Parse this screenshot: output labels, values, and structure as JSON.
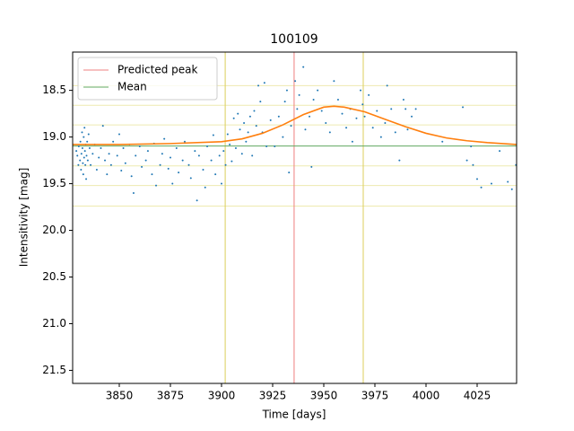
{
  "chart_data": {
    "type": "scatter",
    "title": "100109",
    "x_label": "Time [days]",
    "y_label": "Intensitivity [mag]",
    "xlim": [
      3827.2,
      4044.3
    ],
    "ylim": [
      21.64,
      18.09
    ],
    "xticks": [
      3850,
      3875,
      3900,
      3925,
      3950,
      3975,
      4000,
      4025
    ],
    "yticks": [
      {
        "value": 18.5,
        "label": "18.5"
      },
      {
        "value": 19,
        "label": "19.0"
      },
      {
        "value": 19.5,
        "label": "19.5"
      },
      {
        "value": 20,
        "label": "20.0"
      },
      {
        "value": 20.5,
        "label": "20.5"
      },
      {
        "value": 21,
        "label": "21.0"
      },
      {
        "value": 21.5,
        "label": "21.5"
      }
    ],
    "legend": "upper left",
    "color": "#1f77b4",
    "x": [
      3829.0,
      3829.5,
      3830.0,
      3830.2,
      3830.8,
      3831.0,
      3831.3,
      3831.5,
      3831.8,
      3832.0,
      3832.2,
      3832.4,
      3832.6,
      3832.8,
      3833.0,
      3833.2,
      3833.4,
      3833.6,
      3833.8,
      3834.0,
      3834.3,
      3834.6,
      3835.0,
      3835.5,
      3836,
      3837,
      3838,
      3839,
      3840,
      3841,
      3842,
      3843,
      3844,
      3845,
      3846,
      3847,
      3849,
      3850,
      3851,
      3852,
      3853,
      3855,
      3856,
      3857,
      3858,
      3860,
      3861,
      3863,
      3864,
      3866,
      3867,
      3868,
      3870,
      3871,
      3872,
      3874,
      3875,
      3876,
      3878,
      3879,
      3881,
      3882,
      3884,
      3885,
      3887,
      3888,
      3889,
      3891,
      3892,
      3893,
      3895,
      3896,
      3897,
      3899,
      3900,
      3901,
      3902,
      3903,
      3904,
      3905,
      3906,
      3907,
      3908,
      3909,
      3910,
      3911,
      3912,
      3913,
      3914,
      3915,
      3916,
      3917,
      3918,
      3919,
      3920,
      3921,
      3922,
      3924,
      3926,
      3928,
      3930,
      3931,
      3932,
      3933,
      3934,
      3936,
      3937,
      3938,
      3940,
      3941,
      3943,
      3944,
      3945,
      3947,
      3949,
      3951,
      3953,
      3955,
      3957,
      3959,
      3961,
      3963,
      3964,
      3966,
      3968,
      3969,
      3970,
      3972,
      3974,
      3976,
      3978,
      3980,
      3981,
      3983,
      3985,
      3987,
      3989,
      3990,
      3991,
      3993,
      3995,
      4008,
      4018,
      4020,
      4022,
      4023,
      4025,
      4027,
      4032,
      4036,
      4040,
      4042,
      4044
    ],
    "values": [
      19.15,
      19.2,
      19.3,
      19.1,
      19.25,
      19.05,
      19.35,
      19.18,
      18.95,
      19.12,
      19.28,
      19.4,
      19.0,
      19.22,
      18.9,
      19.15,
      19.3,
      19.08,
      19.45,
      19.2,
      19.05,
      19.25,
      18.97,
      19.12,
      19.3,
      19.18,
      19.08,
      19.35,
      19.22,
      19.12,
      18.88,
      19.25,
      19.4,
      19.18,
      19.3,
      19.05,
      19.2,
      18.97,
      19.36,
      19.12,
      19.28,
      19.08,
      19.42,
      19.6,
      19.2,
      19.1,
      19.32,
      19.25,
      19.15,
      19.4,
      19.07,
      19.52,
      19.3,
      19.18,
      19.02,
      19.34,
      19.22,
      19.5,
      19.12,
      19.38,
      19.25,
      19.05,
      19.3,
      19.44,
      19.15,
      19.68,
      19.2,
      19.35,
      19.54,
      19.1,
      19.25,
      18.98,
      19.4,
      19.2,
      19.5,
      19.15,
      19.3,
      18.97,
      19.08,
      19.26,
      18.8,
      19.12,
      18.75,
      18.92,
      19.18,
      18.85,
      19.05,
      18.95,
      18.78,
      19.2,
      18.72,
      18.88,
      18.45,
      18.62,
      18.95,
      18.42,
      19.1,
      18.82,
      19.1,
      18.78,
      19.0,
      18.62,
      18.5,
      19.38,
      18.88,
      18.4,
      18.7,
      18.55,
      18.25,
      18.92,
      18.78,
      19.32,
      18.6,
      18.5,
      18.72,
      18.85,
      18.95,
      18.4,
      18.6,
      18.75,
      18.9,
      18.7,
      19.05,
      18.8,
      18.5,
      18.65,
      18.78,
      18.55,
      18.9,
      18.72,
      19.0,
      18.85,
      18.45,
      18.7,
      18.95,
      19.25,
      18.6,
      18.7,
      18.92,
      18.78,
      18.7,
      19.05,
      18.68,
      19.25,
      19.1,
      19.3,
      19.45,
      19.54,
      19.5,
      19.15,
      19.48,
      19.56,
      19.3
    ],
    "curve": {
      "color": "#ff7f0e",
      "x": [
        3827.2,
        3850,
        3875,
        3900,
        3910,
        3920,
        3930,
        3940,
        3950,
        3955,
        3960,
        3970,
        3980,
        3990,
        4000,
        4010,
        4020,
        4030,
        4044.3
      ],
      "values": [
        19.08,
        19.08,
        19.07,
        19.05,
        19.02,
        18.96,
        18.87,
        18.76,
        18.68,
        18.67,
        18.68,
        18.73,
        18.81,
        18.89,
        18.96,
        19.01,
        19.04,
        19.06,
        19.08
      ]
    },
    "peak": {
      "name": "Predicted peak",
      "value": 3935.5,
      "color": "#ef8080"
    },
    "mean": {
      "name": "Mean",
      "value": 19.096,
      "color": "#60a860"
    },
    "window": {
      "values": [
        3901.8,
        3969.3
      ],
      "color": "#dccf5c"
    },
    "bands": {
      "values": [
        18.45,
        18.66,
        18.87,
        19.31,
        19.52,
        19.74
      ],
      "color": "#eeeab0"
    }
  }
}
